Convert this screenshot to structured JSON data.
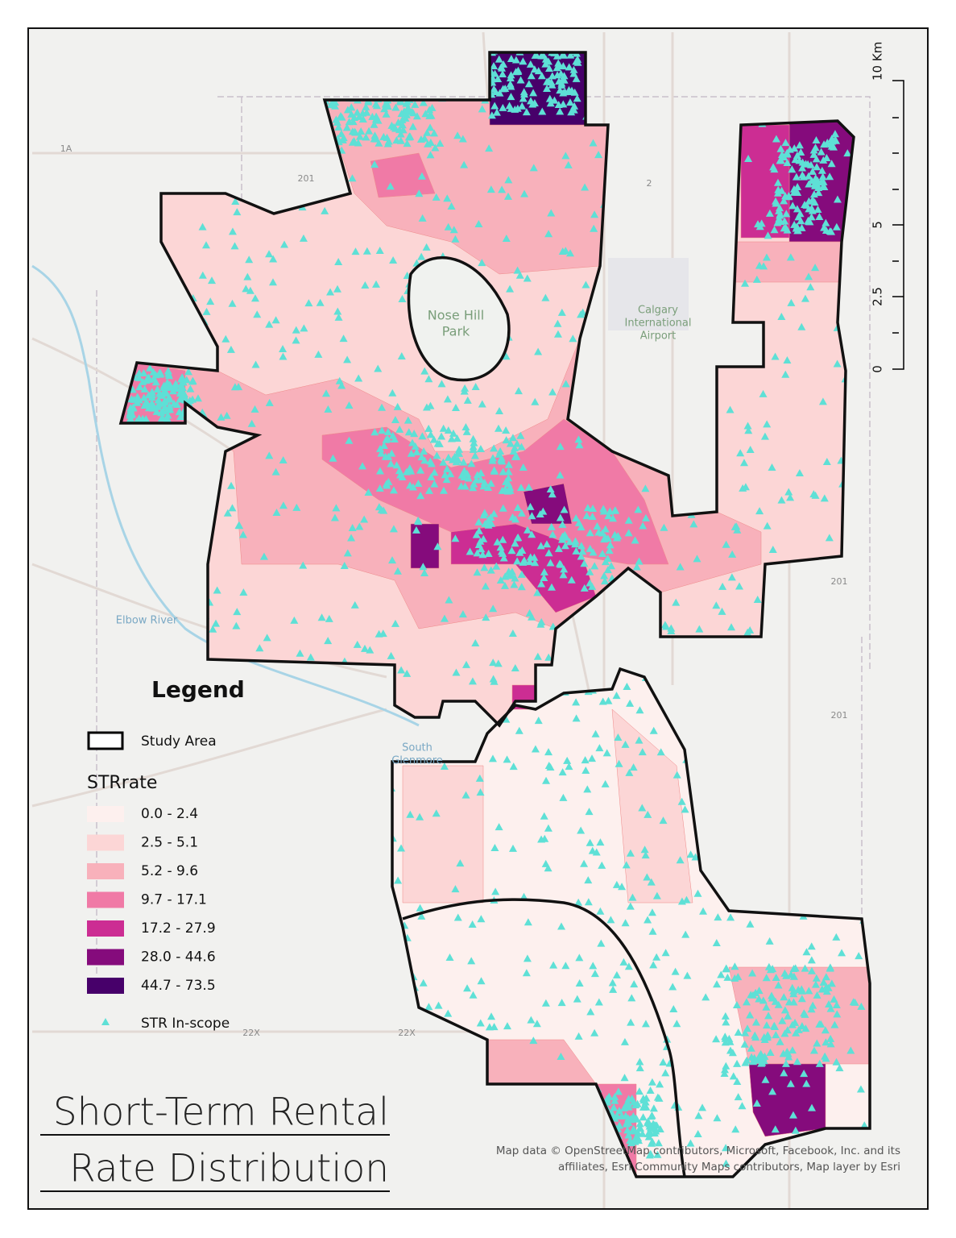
{
  "title": [
    "Short-Term Rental",
    "Rate Distribution"
  ],
  "legend": {
    "heading": "Legend",
    "study_area": "Study Area",
    "field": "STRrate",
    "classes": [
      {
        "label": "0.0 - 2.4",
        "color": "#fdf0ee"
      },
      {
        "label": "2.5 - 5.1",
        "color": "#fcd6d6"
      },
      {
        "label": "5.2 - 9.6",
        "color": "#f8b1bb"
      },
      {
        "label": "9.7 - 17.1",
        "color": "#f07aa6"
      },
      {
        "label": "17.2 - 27.9",
        "color": "#cc2d93"
      },
      {
        "label": "28.0 - 44.6",
        "color": "#850b7c"
      },
      {
        "label": "44.7 - 73.5",
        "color": "#47006a"
      }
    ],
    "points": "STR In-scope",
    "point_color": "#5ee0d6"
  },
  "scale_bar": {
    "labels": [
      "0",
      "2.5",
      "5",
      "10 Km"
    ]
  },
  "place_labels": [
    "Nose Hill",
    "Park",
    "Calgary",
    "International",
    "Airport",
    "Elbow River",
    "South",
    "Glenmore",
    "1A",
    "201",
    "2",
    "201",
    "201",
    "22X",
    "22X"
  ],
  "attribution": [
    "Map data © OpenStreetMap contributors, Microsoft, Facebook, Inc. and its",
    "affiliates, Esri Community Maps contributors, Map layer by Esri"
  ]
}
